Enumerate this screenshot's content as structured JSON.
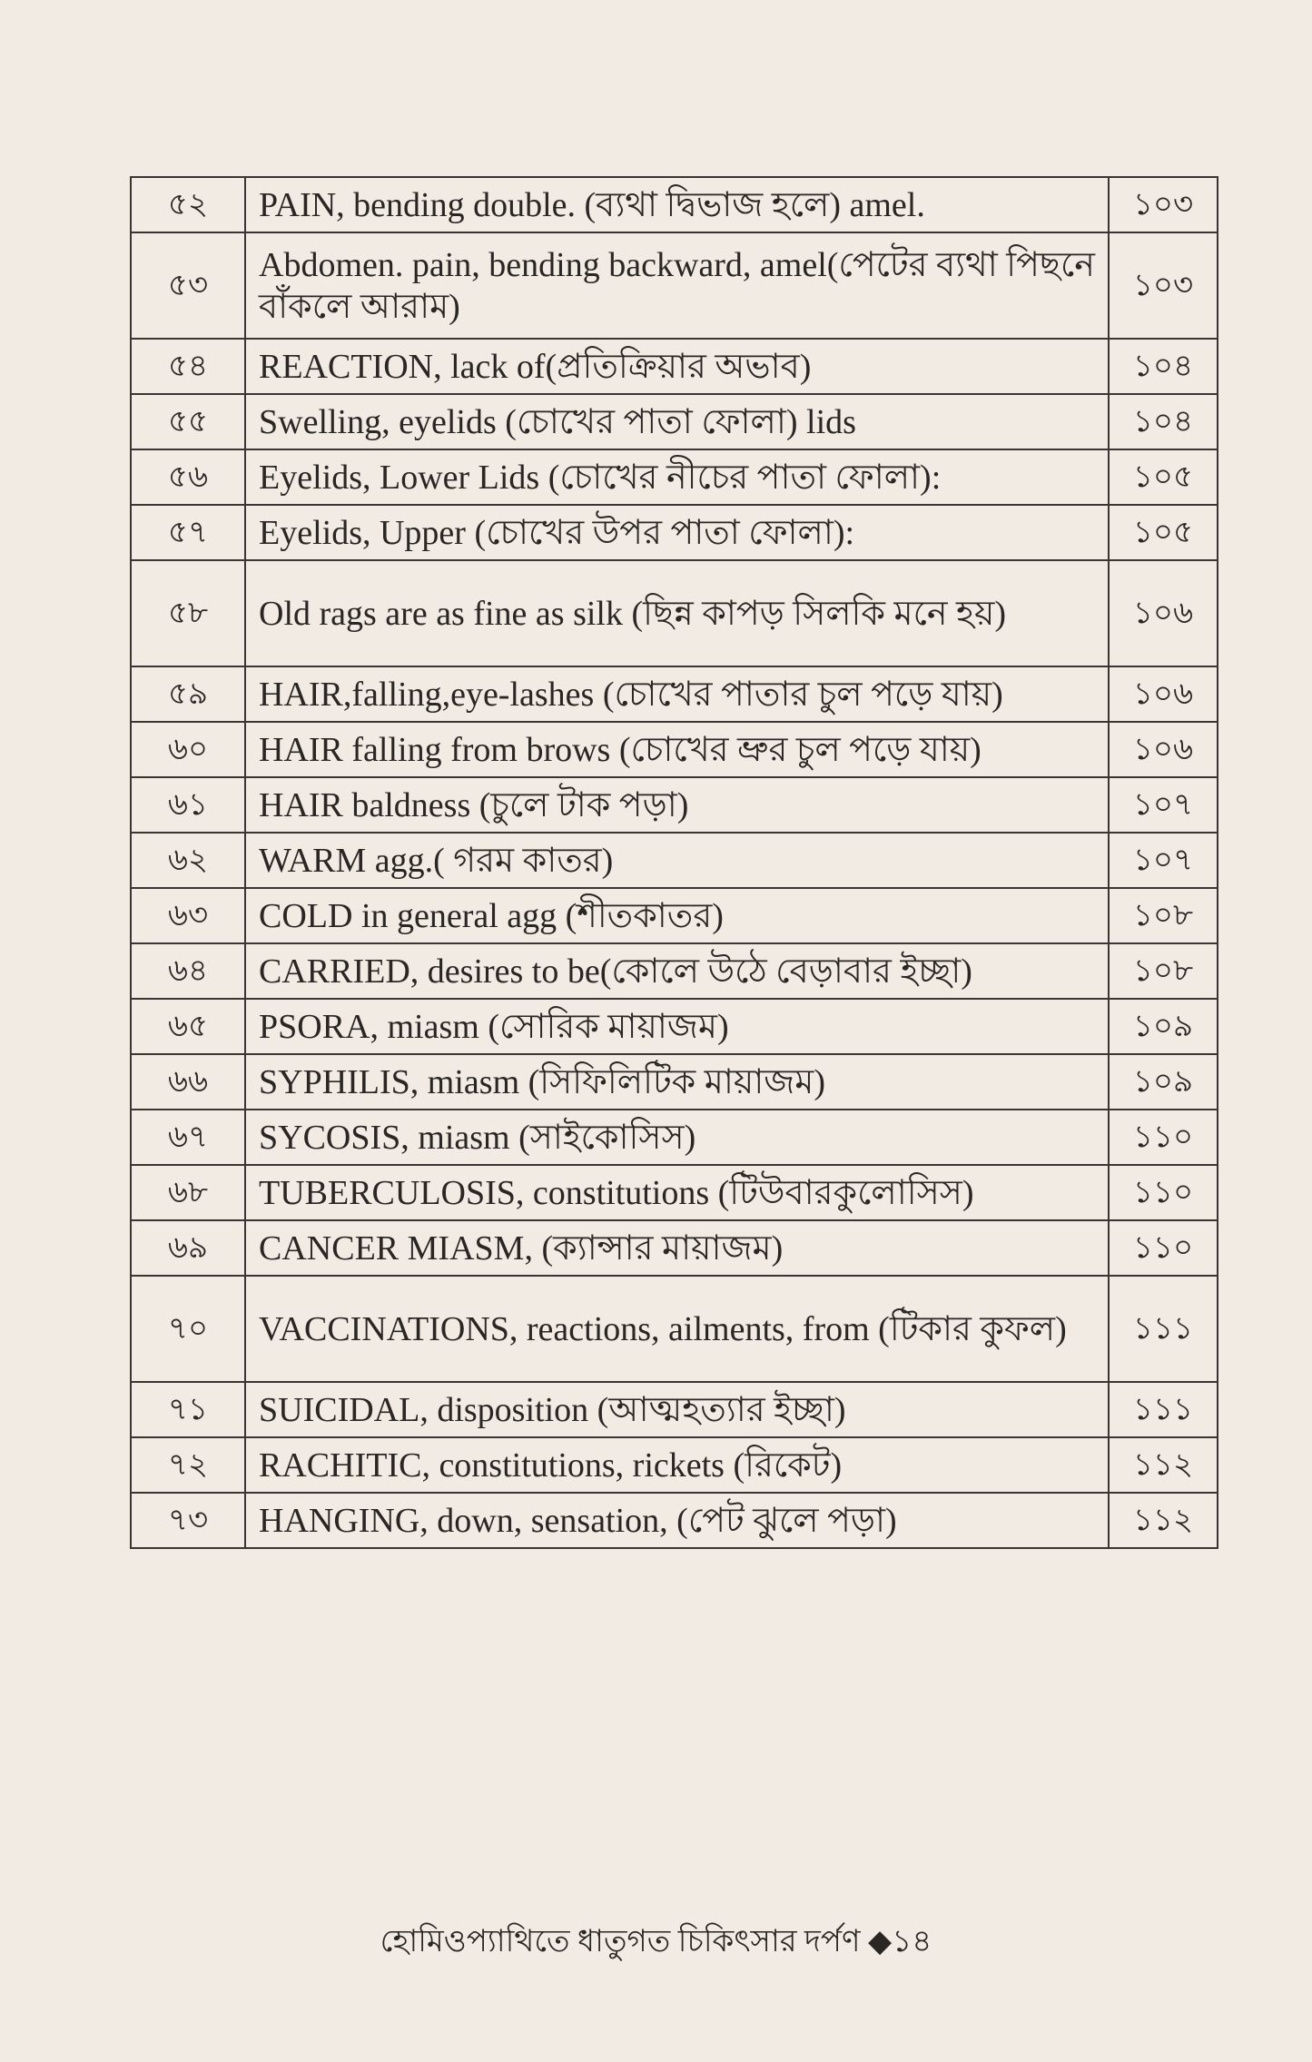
{
  "table": {
    "rows": [
      {
        "num": "৫২",
        "text": "PAIN, bending double. (ব্যথা দ্বিভাজ হলে) amel.",
        "page": "১০৩"
      },
      {
        "num": "৫৩",
        "text": "Abdomen. pain,  bending backward, amel(পেটের ব্যথা পিছনে বাঁকলে আরাম)",
        "page": "১০৩",
        "tall": true
      },
      {
        "num": "৫৪",
        "text": "REACTION, lack of(প্রতিক্রিয়ার অভাব)",
        "page": "১০৪"
      },
      {
        "num": "৫৫",
        "text": "Swelling, eyelids (চোখের পাতা ফোলা) lids",
        "page": "১০৪"
      },
      {
        "num": "৫৬",
        "text": "Eyelids, Lower Lids (চোখের নীচের পাতা ফোলা):",
        "page": "১০৫"
      },
      {
        "num": "৫৭",
        "text": "Eyelids, Upper (চোখের উপর পাতা ফোলা):",
        "page": "১০৫"
      },
      {
        "num": "৫৮",
        "text": "Old rags are as fine  as silk (ছিন্ন কাপড় সিলকি মনে হয়)",
        "page": "১০৬",
        "tall": true
      },
      {
        "num": "৫৯",
        "text": "HAIR,falling,eye-lashes (চোখের পাতার চুল পড়ে যায়)",
        "page": "১০৬"
      },
      {
        "num": "৬০",
        "text": " HAIR falling from brows (চোখের ভ্রুর চুল পড়ে যায়)",
        "page": "১০৬"
      },
      {
        "num": "৬১",
        "text": "HAIR baldness (চুলে টাক পড়া)",
        "page": "১০৭"
      },
      {
        "num": "৬২",
        "text": "WARM agg.( গরম কাতর)",
        "page": "১০৭"
      },
      {
        "num": "৬৩",
        "text": "COLD in general agg (শীতকাতর)",
        "page": "১০৮"
      },
      {
        "num": "৬৪",
        "text": "CARRIED, desires to be(কোলে উঠে বেড়াবার ইচ্ছা)",
        "page": "১০৮"
      },
      {
        "num": "৬৫",
        "text": "PSORA, miasm (সোরিক মায়াজম)",
        "page": "১০৯"
      },
      {
        "num": "৬৬",
        "text": "SYPHILIS, miasm (সিফিলিটিক মায়াজম)",
        "page": "১০৯"
      },
      {
        "num": "৬৭",
        "text": "SYCOSIS, miasm (সাইকোসিস)",
        "page": "১১০"
      },
      {
        "num": "৬৮",
        "text": "TUBERCULOSIS, constitutions (টিউবারকুলোসিস)",
        "page": "১১০"
      },
      {
        "num": "৬৯",
        "text": "CANCER MIASM, (ক্যান্সার মায়াজম)",
        "page": "১১০"
      },
      {
        "num": "৭০",
        "text": "VACCINATIONS, reactions, ailments, from (টিকার কুফল)",
        "page": "১১১",
        "tall": true
      },
      {
        "num": "৭১",
        "text": "SUICIDAL, disposition (আত্মহত্যার ইচ্ছা)",
        "page": "১১১"
      },
      {
        "num": "৭২",
        "text": "RACHITIC, constitutions, rickets (রিকেট)",
        "page": "১১২"
      },
      {
        "num": "৭৩",
        "text": "HANGING, down, sensation, (পেট ঝুলে পড়া)",
        "page": "১১২"
      }
    ]
  },
  "footer": {
    "book_title": "হোমিওপ্যাথিতে ধাতুগত চিকিৎসার দর্পণ",
    "separator": "◆",
    "page_number": "১৪"
  }
}
